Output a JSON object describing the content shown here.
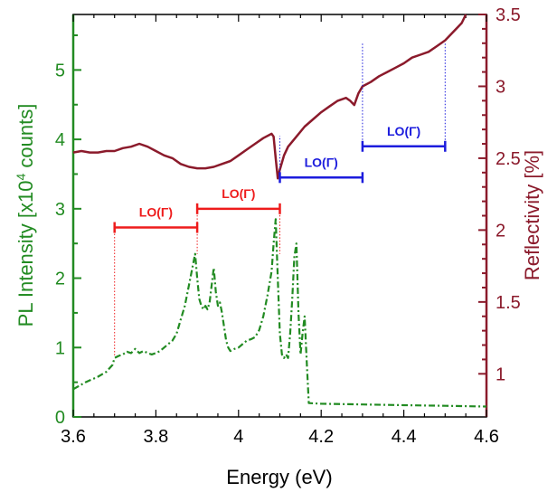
{
  "chart_data": {
    "type": "line",
    "title": "",
    "xlabel": "Energy (eV)",
    "ylabel_left_prefix": "PL Intensity [x10",
    "ylabel_left_sup": "4",
    "ylabel_left_suffix": " counts]",
    "ylabel_right": "Reflectivity [%]",
    "xlim": [
      3.6,
      4.6
    ],
    "ylim_left": [
      0,
      5.8
    ],
    "ylim_right": [
      0.7,
      3.5
    ],
    "x_ticks": [
      "3.6",
      "3.8",
      "4",
      "4.2",
      "4.4",
      "4.6"
    ],
    "y_ticks_left": [
      "0",
      "1",
      "2",
      "3",
      "4",
      "5"
    ],
    "y_ticks_right": [
      "1",
      "1.5",
      "2",
      "2.5",
      "3",
      "3.5"
    ],
    "colors": {
      "pl": "#228B22",
      "reflectivity": "#8B1A2B",
      "lo_red": "#EE1C1C",
      "lo_blue": "#1C1CDD"
    },
    "series": [
      {
        "key": "pl",
        "axis": "left",
        "style": "dash-dot",
        "x": [
          3.6,
          3.63,
          3.66,
          3.68,
          3.695,
          3.7,
          3.71,
          3.72,
          3.73,
          3.74,
          3.75,
          3.76,
          3.77,
          3.78,
          3.79,
          3.8,
          3.81,
          3.82,
          3.83,
          3.84,
          3.85,
          3.86,
          3.87,
          3.88,
          3.89,
          3.895,
          3.9,
          3.905,
          3.91,
          3.915,
          3.92,
          3.925,
          3.93,
          3.935,
          3.94,
          3.945,
          3.95,
          3.955,
          3.96,
          3.965,
          3.97,
          3.975,
          3.98,
          3.99,
          4.0,
          4.01,
          4.02,
          4.03,
          4.04,
          4.05,
          4.06,
          4.07,
          4.08,
          4.085,
          4.09,
          4.095,
          4.1,
          4.105,
          4.11,
          4.115,
          4.12,
          4.125,
          4.13,
          4.135,
          4.14,
          4.145,
          4.15,
          4.155,
          4.16,
          4.165,
          4.17,
          4.2,
          4.3,
          4.4,
          4.5,
          4.6
        ],
        "y": [
          0.4,
          0.5,
          0.58,
          0.65,
          0.75,
          0.85,
          0.88,
          0.9,
          0.94,
          0.92,
          0.98,
          0.92,
          0.95,
          0.92,
          0.9,
          0.92,
          0.95,
          1.0,
          1.05,
          1.1,
          1.2,
          1.4,
          1.6,
          1.9,
          2.2,
          2.35,
          2.0,
          1.7,
          1.6,
          1.55,
          1.6,
          1.55,
          1.65,
          1.9,
          2.15,
          1.8,
          1.6,
          1.65,
          1.5,
          1.3,
          1.1,
          1.0,
          0.95,
          0.98,
          1.0,
          1.05,
          1.1,
          1.12,
          1.15,
          1.25,
          1.45,
          1.75,
          2.1,
          2.5,
          2.85,
          2.0,
          1.2,
          0.9,
          0.85,
          0.9,
          0.85,
          1.2,
          1.7,
          2.3,
          2.5,
          1.5,
          0.9,
          1.2,
          1.45,
          0.8,
          0.2,
          0.19,
          0.18,
          0.17,
          0.16,
          0.15
        ]
      },
      {
        "key": "reflectivity",
        "axis": "right",
        "style": "solid",
        "x": [
          3.6,
          3.62,
          3.64,
          3.66,
          3.68,
          3.7,
          3.72,
          3.74,
          3.76,
          3.78,
          3.8,
          3.82,
          3.84,
          3.86,
          3.88,
          3.9,
          3.92,
          3.94,
          3.96,
          3.98,
          4.0,
          4.02,
          4.04,
          4.06,
          4.08,
          4.085,
          4.09,
          4.095,
          4.1,
          4.11,
          4.12,
          4.14,
          4.16,
          4.18,
          4.2,
          4.22,
          4.24,
          4.26,
          4.27,
          4.28,
          4.29,
          4.3,
          4.32,
          4.34,
          4.36,
          4.38,
          4.4,
          4.42,
          4.44,
          4.46,
          4.48,
          4.5,
          4.52,
          4.54,
          4.55
        ],
        "y": [
          2.54,
          2.55,
          2.54,
          2.54,
          2.55,
          2.55,
          2.57,
          2.58,
          2.6,
          2.58,
          2.55,
          2.52,
          2.5,
          2.46,
          2.44,
          2.43,
          2.43,
          2.44,
          2.46,
          2.48,
          2.52,
          2.56,
          2.6,
          2.64,
          2.67,
          2.65,
          2.5,
          2.36,
          2.42,
          2.52,
          2.58,
          2.65,
          2.72,
          2.77,
          2.82,
          2.86,
          2.9,
          2.92,
          2.9,
          2.87,
          2.95,
          3.0,
          3.03,
          3.07,
          3.1,
          3.13,
          3.16,
          3.2,
          3.22,
          3.24,
          3.28,
          3.32,
          3.38,
          3.44,
          3.5
        ]
      }
    ],
    "annotations": [
      {
        "label": "LO(Γ)",
        "color_key": "lo_red",
        "x_start": 3.7,
        "x_end": 3.9,
        "y_bracket": 2.73,
        "y_drop": 0.86
      },
      {
        "label": "LO(Γ)",
        "color_key": "lo_red",
        "x_start": 3.9,
        "x_end": 4.1,
        "y_bracket": 3.0,
        "y_drop": 2.35
      },
      {
        "label": "LO(Γ)",
        "color_key": "lo_blue",
        "x_start": 4.1,
        "x_end": 4.3,
        "y_bracket": 3.45,
        "y_drop": 4.05
      },
      {
        "label": "LO(Γ)",
        "color_key": "lo_blue",
        "x_start": 4.3,
        "x_end": 4.5,
        "y_bracket": 3.9,
        "y_drop": 5.38
      }
    ]
  }
}
